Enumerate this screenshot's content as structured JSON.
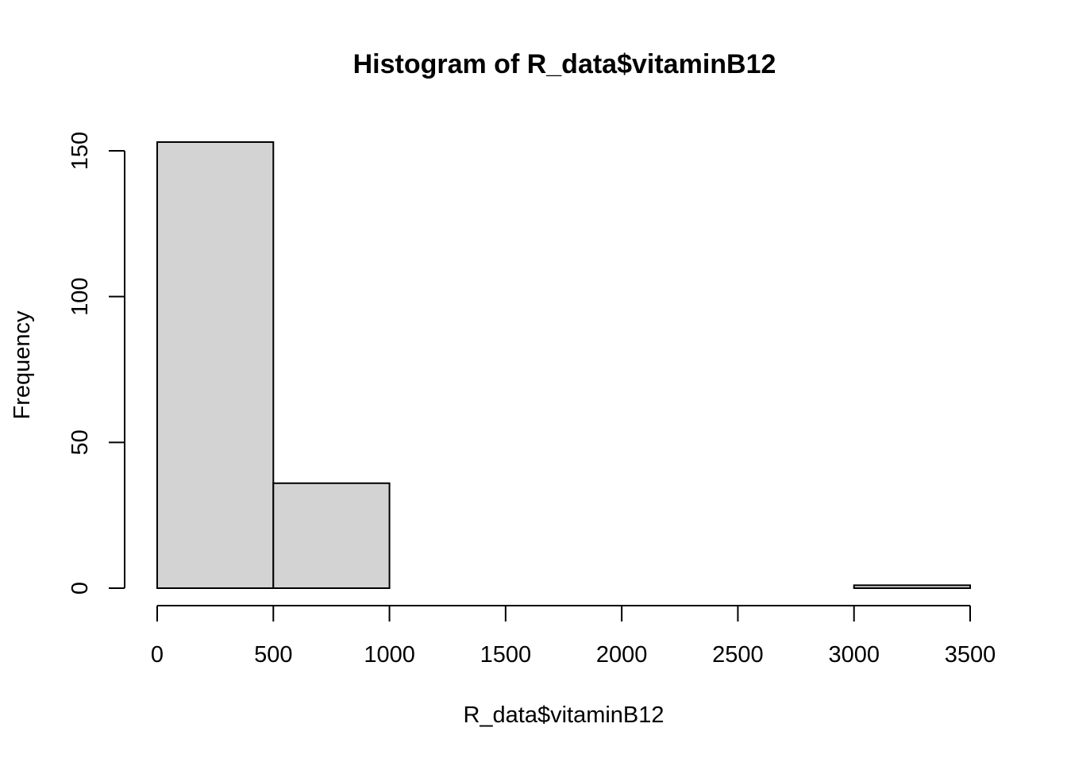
{
  "chart_data": {
    "type": "bar",
    "subtype": "histogram",
    "title": "Histogram of R_data$vitaminB12",
    "xlabel": "R_data$vitaminB12",
    "ylabel": "Frequency",
    "bins": [
      {
        "start": 0,
        "end": 500,
        "count": 153
      },
      {
        "start": 500,
        "end": 1000,
        "count": 36
      },
      {
        "start": 1000,
        "end": 1500,
        "count": 0
      },
      {
        "start": 1500,
        "end": 2000,
        "count": 0
      },
      {
        "start": 2000,
        "end": 2500,
        "count": 0
      },
      {
        "start": 2500,
        "end": 3000,
        "count": 0
      },
      {
        "start": 3000,
        "end": 3500,
        "count": 1
      }
    ],
    "xlim": [
      0,
      3500
    ],
    "ylim": [
      0,
      153
    ],
    "x_ticks": [
      "0",
      "500",
      "1000",
      "1500",
      "2000",
      "2500",
      "3000",
      "3500"
    ],
    "y_ticks": [
      "0",
      "50",
      "100",
      "150"
    ],
    "bar_fill": "#d3d3d3",
    "bar_stroke": "#000000"
  }
}
